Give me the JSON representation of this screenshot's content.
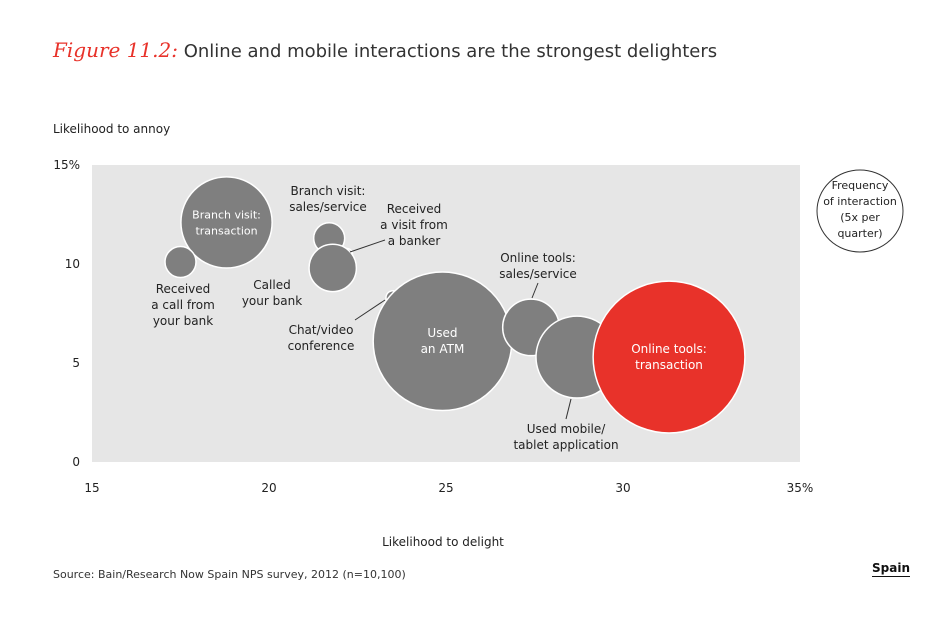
{
  "title": {
    "figure_number": "Figure 11.2:",
    "text": "Online and mobile interactions are the strongest delighters"
  },
  "source": "Source: Bain/Research Now Spain NPS survey, 2012 (n=10,100)",
  "region_label": "Spain",
  "colors": {
    "background_panel": "#e6e6e6",
    "bubble": "#7f7f7f",
    "highlight": "#e8322a",
    "bubble_edge": "#ffffff"
  },
  "chart_data": {
    "type": "bubble",
    "xlabel": "Likelihood to delight",
    "ylabel": "Likelihood to annoy",
    "xlim": [
      15,
      35
    ],
    "ylim": [
      0,
      15
    ],
    "x_ticks": [
      "15",
      "20",
      "25",
      "30",
      "35%"
    ],
    "y_ticks": [
      "0",
      "5",
      "10",
      "15%"
    ],
    "size_legend": [
      "Frequency",
      "of interaction",
      "(5x per",
      "quarter)"
    ],
    "series": [
      {
        "label": [
          "Branch visit:",
          "transaction"
        ],
        "x": 18.8,
        "y": 12.1,
        "size": 1.3,
        "label_inside": true,
        "highlight": false
      },
      {
        "label": [
          "Received",
          "a call from",
          "your bank"
        ],
        "x": 17.5,
        "y": 10.1,
        "size": 0.15,
        "label_inside": false,
        "highlight": false
      },
      {
        "label": [
          "Branch visit:",
          "sales/service"
        ],
        "x": 21.7,
        "y": 11.3,
        "size": 0.15,
        "label_inside": false,
        "highlight": false
      },
      {
        "label": [
          "Received",
          "a visit from",
          "a banker"
        ],
        "x": 22.2,
        "y": 10.5,
        "size": 0.02,
        "label_inside": false,
        "highlight": false
      },
      {
        "label": [
          "Called",
          "your bank"
        ],
        "x": 21.8,
        "y": 9.8,
        "size": 0.35,
        "label_inside": false,
        "highlight": false
      },
      {
        "label": [
          "Chat/video",
          "conference"
        ],
        "x": 23.5,
        "y": 8.3,
        "size": 0.03,
        "label_inside": false,
        "highlight": false
      },
      {
        "label": [
          "Used",
          "an ATM"
        ],
        "x": 24.9,
        "y": 6.1,
        "size": 3.0,
        "label_inside": true,
        "highlight": false
      },
      {
        "label": [
          "Online tools:",
          "sales/service"
        ],
        "x": 27.4,
        "y": 6.8,
        "size": 0.5,
        "label_inside": false,
        "highlight": false
      },
      {
        "label": [
          "Used mobile/",
          "tablet application"
        ],
        "x": 28.7,
        "y": 5.3,
        "size": 1.05,
        "label_inside": false,
        "highlight": false
      },
      {
        "label": [
          "Online tools:",
          "transaction"
        ],
        "x": 31.3,
        "y": 5.3,
        "size": 3.6,
        "label_inside": true,
        "highlight": true
      }
    ]
  }
}
